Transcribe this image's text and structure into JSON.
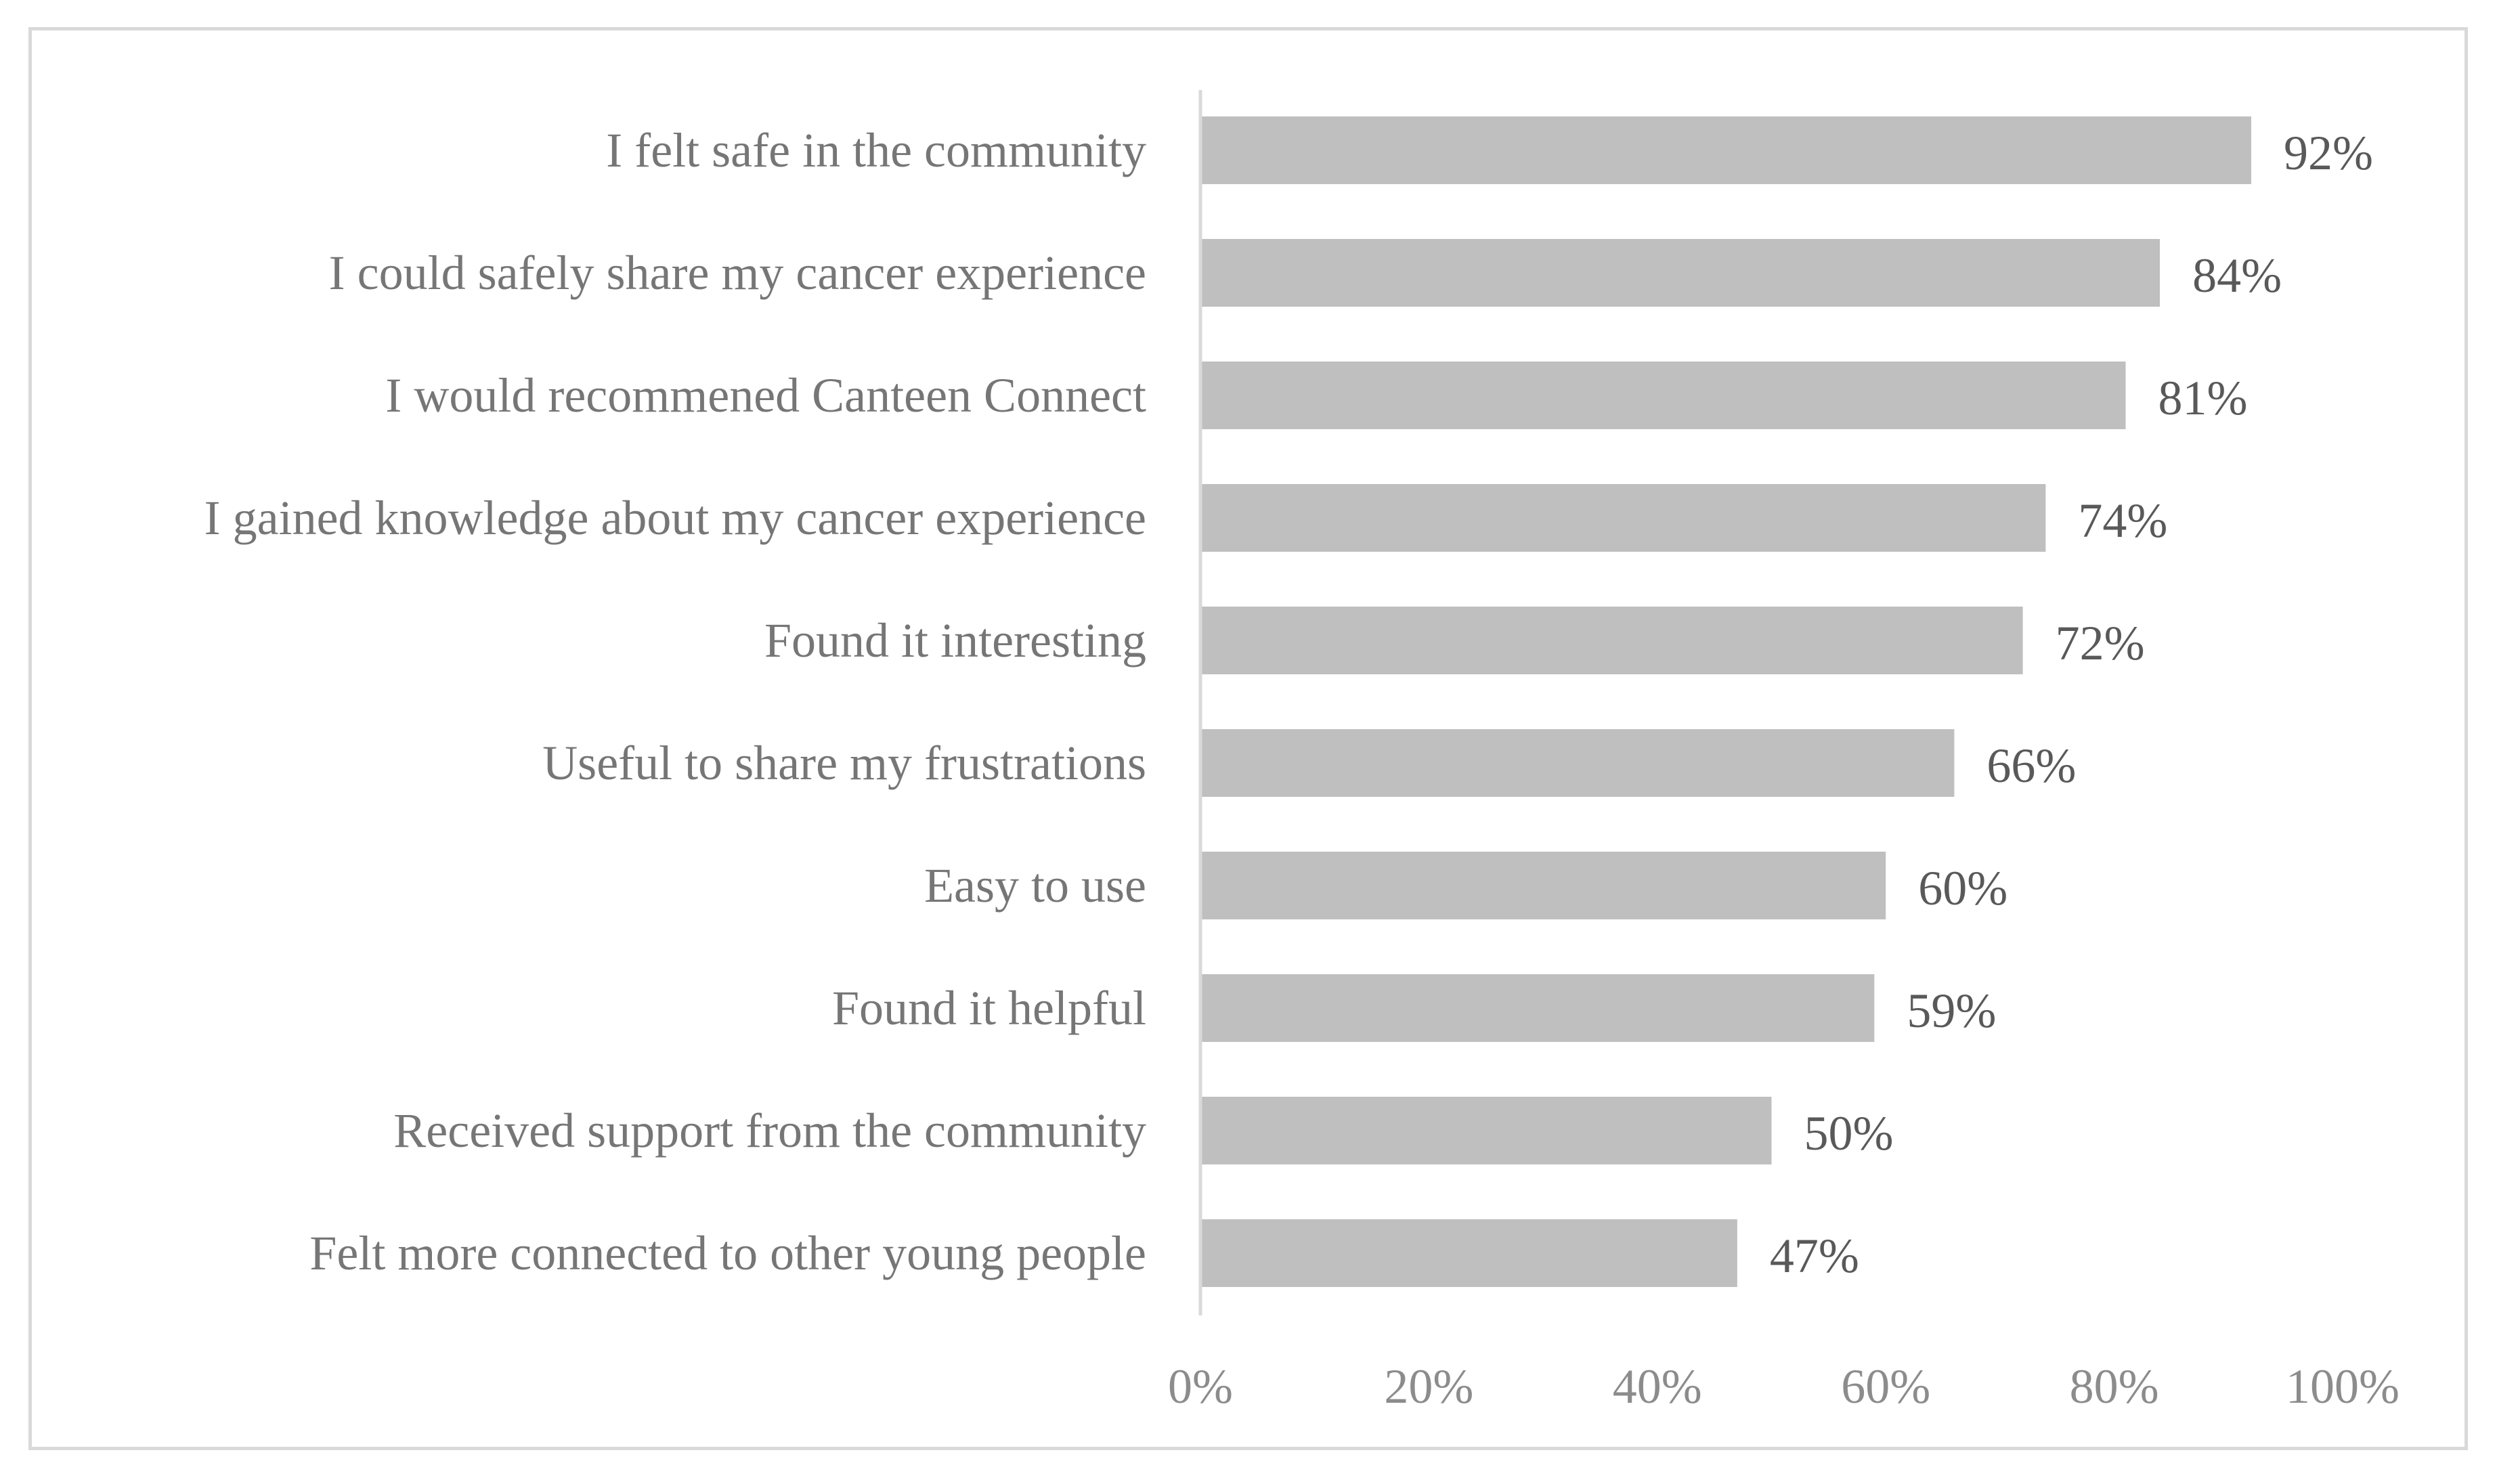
{
  "chart_data": {
    "type": "bar",
    "orientation": "horizontal",
    "title": "",
    "xlabel": "",
    "ylabel": "",
    "categories": [
      "I felt safe in the community",
      "I could safely share my cancer experience",
      "I would recommened Canteen Connect",
      "I gained knowledge about my cancer experience",
      "Found it interesting",
      "Useful to share my frustrations",
      "Easy to use",
      "Found it helpful",
      "Received support from the community",
      "Felt more connected to other young people"
    ],
    "values": [
      92,
      84,
      81,
      74,
      72,
      66,
      60,
      59,
      50,
      47
    ],
    "data_labels": [
      "92%",
      "84%",
      "81%",
      "74%",
      "72%",
      "66%",
      "60%",
      "59%",
      "50%",
      "47%"
    ],
    "xlim": [
      0,
      100
    ],
    "x_ticks": [
      0,
      20,
      40,
      60,
      80,
      100
    ],
    "x_tick_labels": [
      "0%",
      "20%",
      "40%",
      "60%",
      "80%",
      "100%"
    ],
    "grid": false,
    "legend": "none",
    "colors": {
      "bar": "#bfbfbf",
      "axis": "#d9d9d9",
      "category_text": "#767676",
      "value_text": "#595959",
      "tick_text": "#8c8c8c",
      "frame": "#d9d9d9"
    }
  }
}
